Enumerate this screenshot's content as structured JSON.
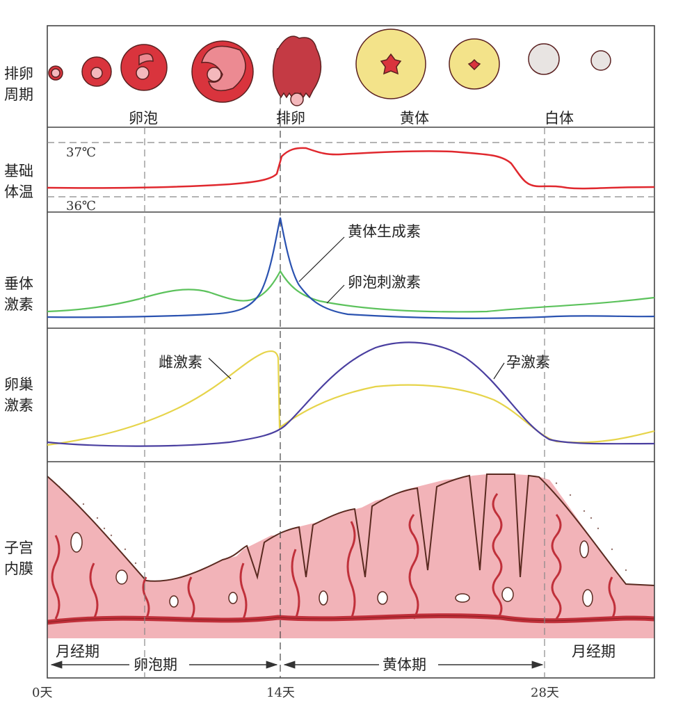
{
  "row_labels": {
    "ovulation_cycle": [
      "排卵",
      "周期"
    ],
    "basal_temp": [
      "基础",
      "体温"
    ],
    "pituitary": [
      "垂体",
      "激素"
    ],
    "ovarian": [
      "卵巢",
      "激素"
    ],
    "endometrium": [
      "子宫",
      "内膜"
    ]
  },
  "ovary_stages": [
    "卵泡",
    "排卵",
    "黄体",
    "白体"
  ],
  "temperature": {
    "high": "37℃",
    "low": "36℃"
  },
  "hormones": {
    "lh": "黄体生成素",
    "fsh": "卵泡刺激素",
    "estrogen": "雌激素",
    "progesterone": "孕激素"
  },
  "phases": {
    "menstrual_left": "月经期",
    "follicular": "卵泡期",
    "luteal": "黄体期",
    "menstrual_right": "月经期"
  },
  "days": [
    "0天",
    "14天",
    "28天"
  ],
  "colors": {
    "temp": "#e0282e",
    "lh": "#2a52b0",
    "fsh": "#5cc25c",
    "estrogen": "#e6d44a",
    "progesterone": "#4a3fa0",
    "tissue": "#f2b3b8",
    "follicle": "#d9343d",
    "corpus_luteum": "#f3e38a"
  }
}
